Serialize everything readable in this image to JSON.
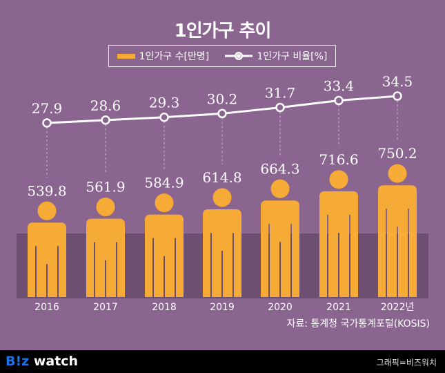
{
  "title": "1인가구 추이",
  "legend": {
    "bar": "1인가구 수[만명]",
    "line": "1인가구 비율[%]"
  },
  "source": "자료: 통계청 국가통계포털(KOSIS)",
  "footer": {
    "logo_b": "B!z",
    "logo_w": " watch",
    "credit": "그래픽=비즈워치"
  },
  "colors": {
    "bar": "#f7ab37",
    "line": "#ffffff",
    "bg": "#8a6590",
    "band": "#6d4f72"
  },
  "chart_data": {
    "type": "bar+line",
    "title": "1인가구 추이",
    "categories": [
      "2016",
      "2017",
      "2018",
      "2019",
      "2020",
      "2021",
      "2022년"
    ],
    "series": [
      {
        "name": "1인가구 수[만명]",
        "type": "bar",
        "values": [
          539.8,
          561.9,
          584.9,
          614.8,
          664.3,
          716.6,
          750.2
        ]
      },
      {
        "name": "1인가구 비율[%]",
        "type": "line",
        "values": [
          27.9,
          28.6,
          29.3,
          30.2,
          31.7,
          33.4,
          34.5
        ]
      }
    ],
    "legend_position": "top-center"
  }
}
